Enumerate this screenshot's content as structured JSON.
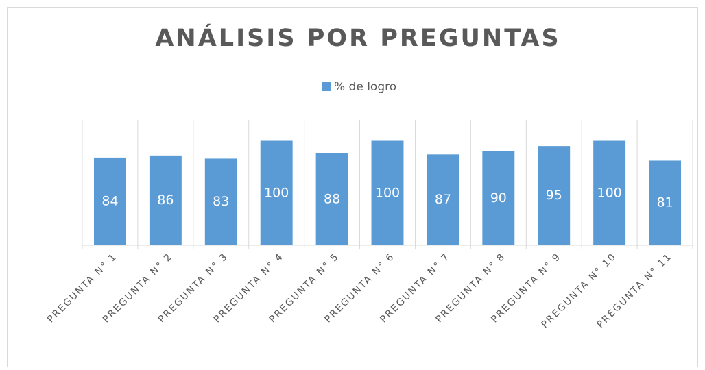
{
  "chart_data": {
    "type": "bar",
    "title": "ANÁLISIS POR PREGUNTAS",
    "categories": [
      "PREGUNTA N° 1",
      "PREGUNTA N° 2",
      "PREGUNTA N° 3",
      "PREGUNTA N° 4",
      "PREGUNTA N° 5",
      "PREGUNTA N° 6",
      "PREGUNTA N° 7",
      "PREGUNTA N° 8",
      "PREGUNTA N° 9",
      "PREGUNTA N° 10",
      "PREGUNTA N° 11"
    ],
    "series": [
      {
        "name": "% de logro",
        "color": "#5b9bd5",
        "values": [
          84,
          86,
          83,
          100,
          88,
          100,
          87,
          90,
          95,
          100,
          81
        ]
      }
    ],
    "ylim": [
      0,
      120
    ],
    "legend": "top"
  }
}
